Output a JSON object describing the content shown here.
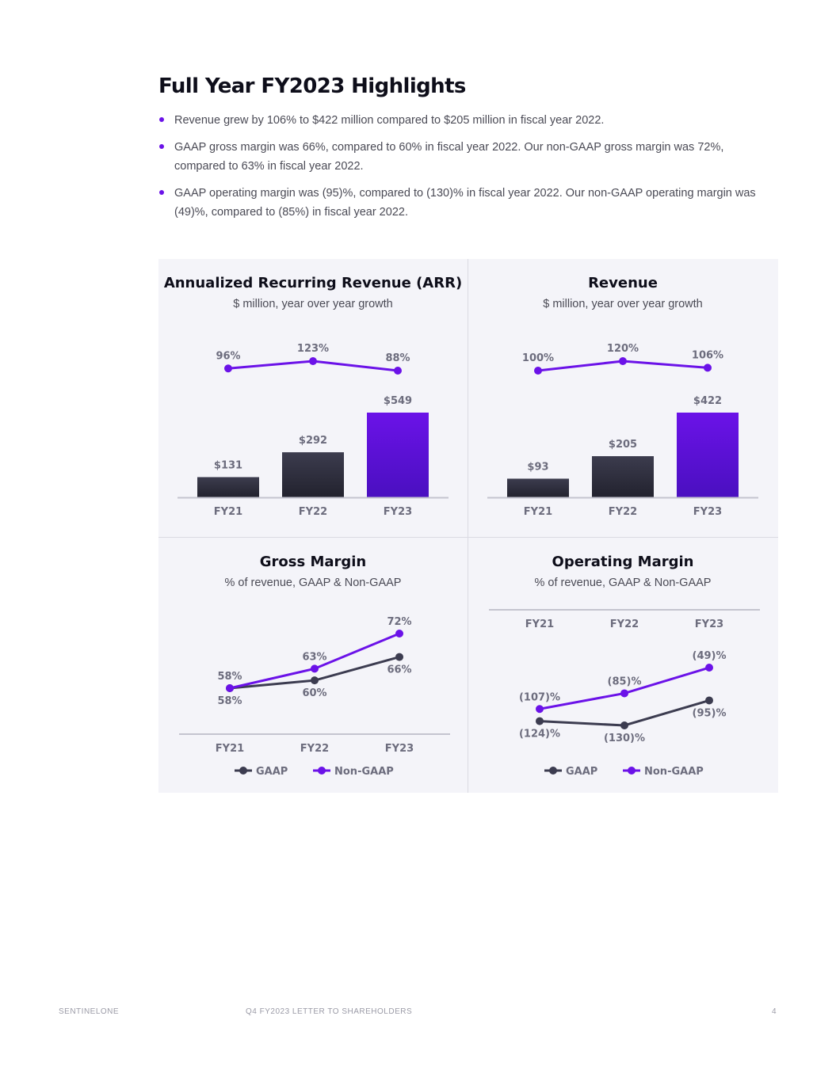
{
  "title": "Full Year FY2023 Highlights",
  "bullets": [
    "Revenue grew by 106% to $422 million compared to $205 million in fiscal year 2022.",
    "GAAP gross margin was 66%, compared to 60% in fiscal year 2022. Our non-GAAP gross margin was 72%, compared to 63% in fiscal year 2022.",
    "GAAP operating margin was (95)%, compared to (130)% in fiscal year 2022. Our non-GAAP operating margin was (49)%, compared to (85%) in fiscal year 2022."
  ],
  "footer": {
    "company": "SENTINELONE",
    "document": "Q4 FY2023 LETTER TO SHAREHOLDERS",
    "page": "4"
  },
  "colors": {
    "gaap": "#3c3c50",
    "non_gaap": "#6b12e8",
    "bar_dark_top": "#3c3c4e",
    "bar_dark_bottom": "#22222e",
    "bar_accent_top": "#6b12e8",
    "bar_accent_bottom": "#4a10c0"
  },
  "chart_data": [
    {
      "type": "bar",
      "title": "Annualized Recurring Revenue (ARR)",
      "subtitle": "$ million, year over year growth",
      "categories": [
        "FY21",
        "FY22",
        "FY23"
      ],
      "values": [
        131,
        292,
        549
      ],
      "value_labels": [
        "$131",
        "$292",
        "$549"
      ],
      "growth": [
        96,
        123,
        88
      ],
      "growth_labels": [
        "96%",
        "123%",
        "88%"
      ]
    },
    {
      "type": "bar",
      "title": "Revenue",
      "subtitle": "$ million, year over year growth",
      "categories": [
        "FY21",
        "FY22",
        "FY23"
      ],
      "values": [
        93,
        205,
        422
      ],
      "value_labels": [
        "$93",
        "$205",
        "$422"
      ],
      "growth": [
        100,
        120,
        106
      ],
      "growth_labels": [
        "100%",
        "120%",
        "106%"
      ]
    },
    {
      "type": "line",
      "title": "Gross Margin",
      "subtitle": "% of revenue, GAAP & Non-GAAP",
      "categories": [
        "FY21",
        "FY22",
        "FY23"
      ],
      "series": [
        {
          "name": "GAAP",
          "values": [
            58,
            60,
            66
          ],
          "labels": [
            "58%",
            "60%",
            "66%"
          ]
        },
        {
          "name": "Non-GAAP",
          "values": [
            58,
            63,
            72
          ],
          "labels": [
            "58%",
            "63%",
            "72%"
          ]
        }
      ],
      "legend": "bottom"
    },
    {
      "type": "line",
      "title": "Operating Margin",
      "subtitle": "% of revenue, GAAP & Non-GAAP",
      "categories": [
        "FY21",
        "FY22",
        "FY23"
      ],
      "axis_position": "top",
      "series": [
        {
          "name": "GAAP",
          "values": [
            -124,
            -130,
            -95
          ],
          "labels": [
            "(124)%",
            "(130)%",
            "(95)%"
          ]
        },
        {
          "name": "Non-GAAP",
          "values": [
            -107,
            -85,
            -49
          ],
          "labels": [
            "(107)%",
            "(85)%",
            "(49)%"
          ]
        }
      ],
      "legend": "bottom"
    }
  ]
}
